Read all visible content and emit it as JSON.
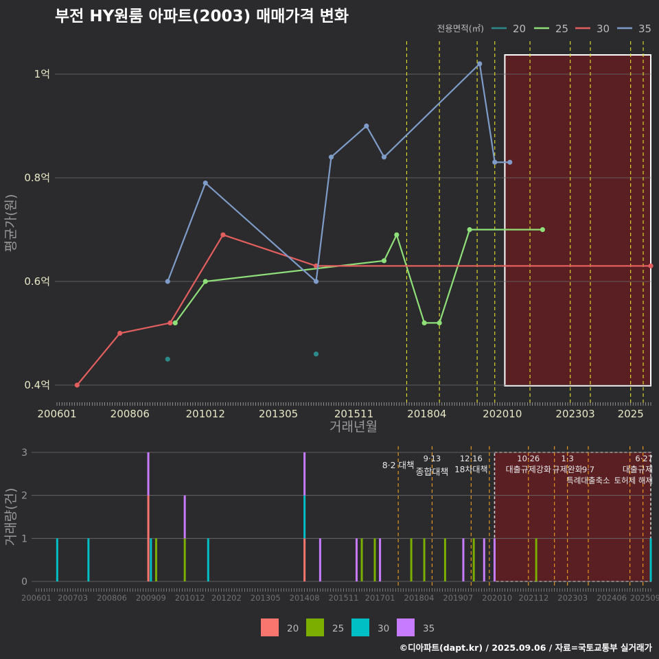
{
  "title": "부전 HY원룸 아파트(2003) 매매가격 변화",
  "credit": "©디아파트(dapt.kr) / 2025.09.06 / 자료=국토교통부 실거래가",
  "colors": {
    "background": "#2b2b2d",
    "grid": "#6e6e70",
    "policy_line": "#e6e62a",
    "policy_line_bottom": "#f0a020",
    "highlight_fill": "#5a1f22",
    "area20_line": "#2e8a8a",
    "area25_line": "#90e07a",
    "area30_line": "#e35f5f",
    "area35_line": "#7f9cc8",
    "bar20": "#f8766d",
    "bar25": "#7cae00",
    "bar30": "#00bfc4",
    "bar35": "#c77cff"
  },
  "chart_data": [
    {
      "type": "line",
      "title": "부전 HY원룸 아파트(2003) 매매가격 변화",
      "xlabel": "거래년월",
      "ylabel": "평균가(원)",
      "x_ticks": [
        "200601",
        "200806",
        "201012",
        "201305",
        "201511",
        "201804",
        "202010",
        "202303",
        "2025"
      ],
      "y_ticks": [
        "0.4억",
        "0.6억",
        "0.8억",
        "1억"
      ],
      "ylim": [
        0.37,
        1.07
      ],
      "legend_title": "전용면적(㎡)",
      "legend": [
        "20",
        "25",
        "30",
        "35"
      ],
      "series": [
        {
          "name": "20",
          "color_key": "area20_line",
          "connected": false,
          "points": [
            [
              "2009-09",
              0.45
            ],
            [
              "2014-08",
              0.46
            ]
          ]
        },
        {
          "name": "25",
          "color_key": "area25_line",
          "connected": true,
          "points": [
            [
              "2009-12",
              0.52
            ],
            [
              "2010-12",
              0.6
            ],
            [
              "2016-11",
              0.64
            ],
            [
              "2017-04",
              0.69
            ],
            [
              "2018-03",
              0.52
            ],
            [
              "2018-09",
              0.52
            ],
            [
              "2019-09",
              0.7
            ],
            [
              "2022-02",
              0.7
            ]
          ]
        },
        {
          "name": "30",
          "color_key": "area30_line",
          "connected": true,
          "points": [
            [
              "2006-09",
              0.4
            ],
            [
              "2008-02",
              0.5
            ],
            [
              "2009-10",
              0.52
            ],
            [
              "2011-07",
              0.69
            ],
            [
              "2014-08",
              0.63
            ],
            [
              "2025-09",
              0.63
            ]
          ]
        },
        {
          "name": "35",
          "color_key": "area35_line",
          "connected": true,
          "points": [
            [
              "2009-09",
              0.6
            ],
            [
              "2010-12",
              0.79
            ],
            [
              "2014-08",
              0.6
            ],
            [
              "2015-02",
              0.84
            ],
            [
              "2016-04",
              0.9
            ],
            [
              "2016-11",
              0.84
            ],
            [
              "2020-01",
              1.02
            ],
            [
              "2020-07",
              0.83
            ],
            [
              "2021-01",
              0.83
            ]
          ]
        }
      ],
      "highlight_range": [
        "2020-11",
        "2025-09"
      ]
    },
    {
      "type": "bar",
      "ylabel": "거래량(건)",
      "x_ticks": [
        "200601",
        "200703",
        "200806",
        "200909",
        "201012",
        "201202",
        "201305",
        "201408",
        "201511",
        "201701",
        "201804",
        "201907",
        "202010",
        "202112",
        "202303",
        "202406",
        "202509"
      ],
      "y_ticks": [
        "0",
        "1",
        "2",
        "3"
      ],
      "ylim": [
        0,
        3
      ],
      "legend": [
        "20",
        "25",
        "30",
        "35"
      ],
      "bars": [
        {
          "month": "2006-09",
          "stack": [
            [
              "30",
              1
            ]
          ]
        },
        {
          "month": "2007-09",
          "stack": [
            [
              "30",
              1
            ]
          ]
        },
        {
          "month": "2009-08",
          "stack": [
            [
              "20",
              2
            ],
            [
              "35",
              1
            ]
          ]
        },
        {
          "month": "2009-09",
          "stack": [
            [
              "30",
              1
            ]
          ]
        },
        {
          "month": "2009-11",
          "stack": [
            [
              "25",
              1
            ]
          ]
        },
        {
          "month": "2010-10",
          "stack": [
            [
              "25",
              1
            ],
            [
              "35",
              1
            ]
          ]
        },
        {
          "month": "2011-07",
          "stack": [
            [
              "30",
              1
            ]
          ]
        },
        {
          "month": "2014-08",
          "stack": [
            [
              "20",
              1
            ],
            [
              "30",
              1
            ],
            [
              "35",
              1
            ]
          ]
        },
        {
          "month": "2015-02",
          "stack": [
            [
              "35",
              1
            ]
          ]
        },
        {
          "month": "2016-04",
          "stack": [
            [
              "35",
              1
            ]
          ]
        },
        {
          "month": "2016-06",
          "stack": [
            [
              "25",
              1
            ]
          ]
        },
        {
          "month": "2016-11",
          "stack": [
            [
              "25",
              1
            ]
          ]
        },
        {
          "month": "2017-01",
          "stack": [
            [
              "35",
              1
            ]
          ]
        },
        {
          "month": "2018-01",
          "stack": [
            [
              "25",
              1
            ]
          ]
        },
        {
          "month": "2018-06",
          "stack": [
            [
              "25",
              1
            ]
          ]
        },
        {
          "month": "2019-02",
          "stack": [
            [
              "25",
              1
            ]
          ]
        },
        {
          "month": "2019-09",
          "stack": [
            [
              "35",
              1
            ]
          ]
        },
        {
          "month": "2020-01",
          "stack": [
            [
              "25",
              1
            ]
          ]
        },
        {
          "month": "2020-05",
          "stack": [
            [
              "35",
              1
            ]
          ]
        },
        {
          "month": "2020-09",
          "stack": [
            [
              "35",
              1
            ]
          ]
        },
        {
          "month": "2022-01",
          "stack": [
            [
              "25",
              1
            ]
          ]
        },
        {
          "month": "2025-09",
          "stack": [
            [
              "30",
              1
            ]
          ]
        }
      ],
      "highlight_range": [
        "2020-09",
        "2025-09"
      ]
    }
  ],
  "policy_lines_top": [
    "2017-08",
    "2018-09",
    "2019-12",
    "2020-07",
    "2021-09",
    "2023-01",
    "2023-09",
    "2025-01",
    "2025-06"
  ],
  "policy_lines_bottom": [
    "2017-08",
    "2018-09",
    "2019-12",
    "2020-07",
    "2021-10",
    "2022-08",
    "2023-01",
    "2023-09",
    "2025-01",
    "2025-06"
  ],
  "policy_labels": [
    {
      "month": "2017-08",
      "lines": [
        "8·2 대책"
      ]
    },
    {
      "month": "2018-09",
      "lines": [
        "9·13",
        "종합대책"
      ]
    },
    {
      "month": "2019-12",
      "lines": [
        "12·16",
        "18차대책"
      ]
    },
    {
      "month": "2021-10",
      "lines": [
        "10·26",
        "대출규제강화"
      ]
    },
    {
      "month": "2023-01",
      "lines": [
        "1·3",
        "규제완화"
      ]
    },
    {
      "month": "2023-09",
      "lines": [
        "",
        "9·7",
        "특례대출축소"
      ]
    },
    {
      "month": "2025-01",
      "lines": [
        "",
        "",
        "토허제 해제"
      ]
    },
    {
      "month": "2025-06",
      "lines": [
        "6·27",
        "대출규제"
      ]
    }
  ]
}
